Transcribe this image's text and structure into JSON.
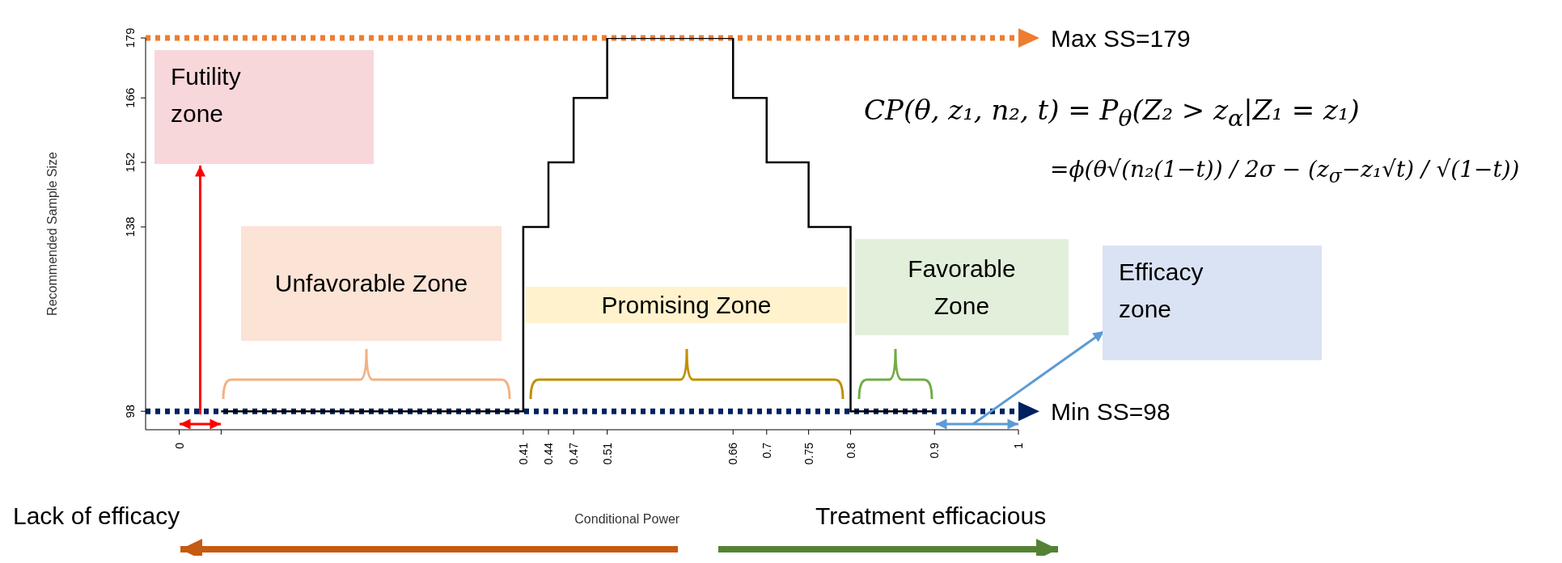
{
  "chart_data": {
    "type": "step",
    "xlabel": "Conditional Power",
    "ylabel": "Recommended Sample Size",
    "x": [
      0.05,
      0.41,
      0.44,
      0.47,
      0.51,
      0.66,
      0.7,
      0.75,
      0.8,
      0.9
    ],
    "series": [
      {
        "color": "#000000",
        "values": [
          98,
          138,
          152,
          166,
          179,
          166,
          152,
          138,
          98,
          98
        ]
      }
    ],
    "xlim": [
      -0.04,
      1
    ],
    "ylim": [
      94,
      179
    ],
    "xticks": [
      0,
      {
        "value": 0.05,
        "label": null
      },
      0.41,
      0.44,
      0.47,
      0.51,
      0.66,
      0.7,
      0.75,
      0.8,
      0.9,
      1
    ],
    "yticks": [
      98,
      138,
      152,
      166,
      179
    ],
    "ref_lines": [
      {
        "axis": "y",
        "value": 179,
        "label": "Max SS=179",
        "color": "#ed7d31",
        "line_style": "dotted"
      },
      {
        "axis": "y",
        "value": 98,
        "label": "Min SS=98",
        "color": "#002060",
        "line_style": "dotted"
      }
    ],
    "annotations": [
      "CP(θ, z₁, n₂, t) = P$_{θ}$(Z₂ > z$_{α}$|Z₁ = z₁)",
      "=ϕ(θ√(n₂(1−t)) / 2σ − (z$_{σ}$−z₁√t) / √(1−t))",
      "Lack of efficacy",
      "Treatment efficacious",
      "Futility zone",
      "Unfavorable Zone",
      "Promising Zone",
      "Favorable Zone",
      "Efficacy zone"
    ]
  }
}
